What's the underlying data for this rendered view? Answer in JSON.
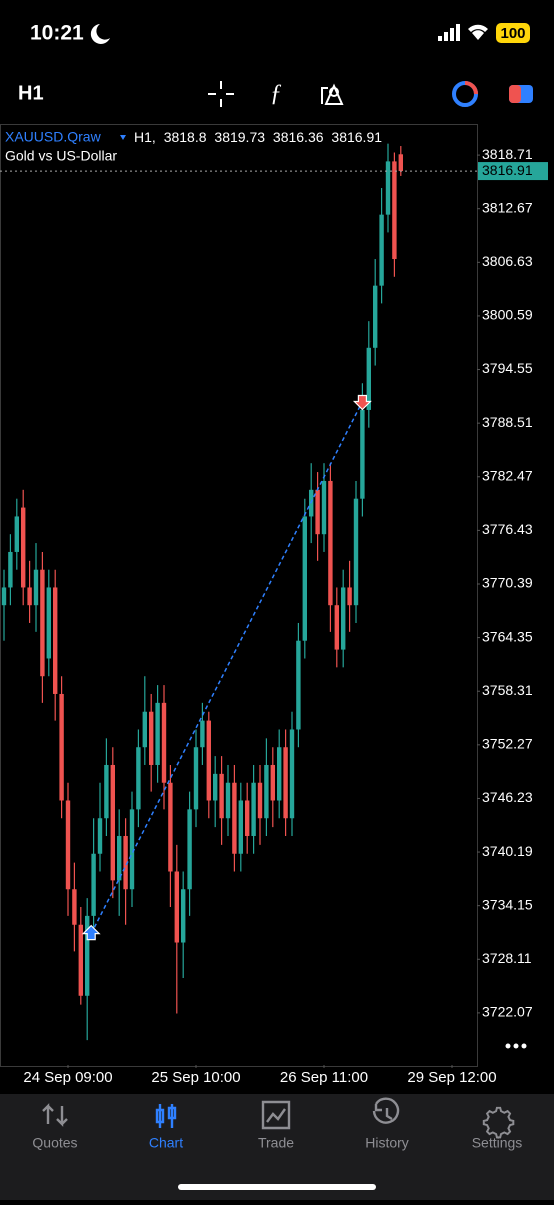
{
  "status_bar": {
    "time": "10:21",
    "battery": "100"
  },
  "toolbar": {
    "timeframe": "H1"
  },
  "chart_data": {
    "type": "candlestick",
    "symbol": "XAUUSD.Qraw",
    "period_label": "H1,",
    "description": "Gold vs US-Dollar",
    "up_color": "#26a69a",
    "down_color": "#ef5350",
    "categories": [
      null,
      null,
      null,
      null,
      null,
      null,
      null,
      null,
      null,
      null,
      "24 Sep 09:00",
      null,
      null,
      null,
      null,
      null,
      null,
      null,
      null,
      null,
      null,
      null,
      null,
      null,
      null,
      null,
      null,
      null,
      null,
      null,
      "25 Sep 10:00",
      null,
      null,
      null,
      null,
      null,
      null,
      null,
      null,
      null,
      null,
      null,
      null,
      null,
      null,
      null,
      null,
      null,
      null,
      null,
      "26 Sep 11:00",
      null,
      null,
      null,
      null,
      null,
      null,
      null,
      null,
      null,
      null,
      null,
      null,
      null,
      null,
      null,
      null,
      null,
      null,
      null,
      "29 Sep 12:00"
    ],
    "open": [
      3768,
      3770,
      3774,
      3779,
      3770,
      3768,
      3772,
      3762,
      3770,
      3758,
      3746,
      3736,
      3732,
      3724,
      3733,
      3740,
      3744,
      3750,
      3737,
      3742,
      3736,
      3745,
      3752,
      3756,
      3750,
      3757,
      3748,
      3738,
      3730,
      3736,
      3745,
      3752,
      3755,
      3746,
      3749,
      3744,
      3748,
      3740,
      3746,
      3742,
      3748,
      3744,
      3750,
      3746,
      3752,
      3744,
      3754,
      3764,
      3778,
      3781,
      3776,
      3782,
      3768,
      3763,
      3770,
      3768,
      3780,
      3790,
      3797,
      3804,
      3812,
      3818,
      3818.8,
      null,
      null,
      null,
      null,
      null,
      null,
      null,
      null
    ],
    "high": [
      3772,
      3776,
      3780,
      3781,
      3773,
      3775,
      3774,
      3772,
      3772,
      3760,
      3748,
      3739,
      3734,
      3735,
      3744,
      3748,
      3753,
      3752,
      3745,
      3744,
      3747,
      3754,
      3760,
      3758,
      3759,
      3759,
      3750,
      3741,
      3738,
      3747,
      3754,
      3757,
      3756,
      3751,
      3751,
      3750,
      3750,
      3748,
      3748,
      3750,
      3750,
      3753,
      3752,
      3754,
      3754,
      3756,
      3766,
      3780,
      3784,
      3783,
      3784,
      3784,
      3770,
      3772,
      3773,
      3782,
      3793,
      3800,
      3807,
      3815,
      3820,
      3819,
      3819.73,
      null,
      null,
      null,
      null,
      null,
      null,
      null,
      null
    ],
    "low": [
      3764,
      3768,
      3772,
      3768,
      3766,
      3765,
      3757,
      3760,
      3755,
      3744,
      3733,
      3729,
      3723,
      3719,
      3731,
      3738,
      3742,
      3735,
      3733,
      3732,
      3734,
      3743,
      3750,
      3747,
      3748,
      3745,
      3734,
      3722,
      3726,
      3733,
      3743,
      3750,
      3744,
      3743,
      3741,
      3742,
      3738,
      3738,
      3740,
      3740,
      3741,
      3742,
      3743,
      3744,
      3742,
      3742,
      3752,
      3762,
      3775,
      3773,
      3774,
      3765,
      3761,
      3761,
      3765,
      3766,
      3778,
      3788,
      3795,
      3802,
      3810,
      3805,
      3816.36,
      null,
      null,
      null,
      null,
      null,
      null,
      null,
      null
    ],
    "close": [
      3770,
      3774,
      3778,
      3770,
      3768,
      3772,
      3760,
      3770,
      3758,
      3746,
      3736,
      3732,
      3724,
      3733,
      3740,
      3744,
      3750,
      3737,
      3742,
      3736,
      3745,
      3752,
      3756,
      3750,
      3757,
      3748,
      3738,
      3730,
      3736,
      3745,
      3752,
      3755,
      3746,
      3749,
      3744,
      3748,
      3740,
      3746,
      3742,
      3748,
      3744,
      3750,
      3746,
      3752,
      3744,
      3754,
      3764,
      3778,
      3781,
      3776,
      3782,
      3768,
      3763,
      3770,
      3768,
      3780,
      3790,
      3797,
      3804,
      3812,
      3818,
      3807,
      3816.91,
      null,
      null,
      null,
      null,
      null,
      null,
      null,
      null
    ],
    "trade": {
      "entry_price": 3731,
      "exit_price": 3790.5,
      "color": "#2f80ff"
    },
    "ylim": [
      3716.2,
      3822.1
    ],
    "yticks": [
      3818.71,
      3812.67,
      3806.63,
      3800.59,
      3794.55,
      3788.51,
      3782.47,
      3776.43,
      3770.39,
      3764.35,
      3758.31,
      3752.27,
      3746.23,
      3740.19,
      3734.15,
      3728.11,
      3722.07
    ]
  },
  "nav": {
    "items": [
      "Quotes",
      "Chart",
      "Trade",
      "History",
      "Settings"
    ]
  }
}
